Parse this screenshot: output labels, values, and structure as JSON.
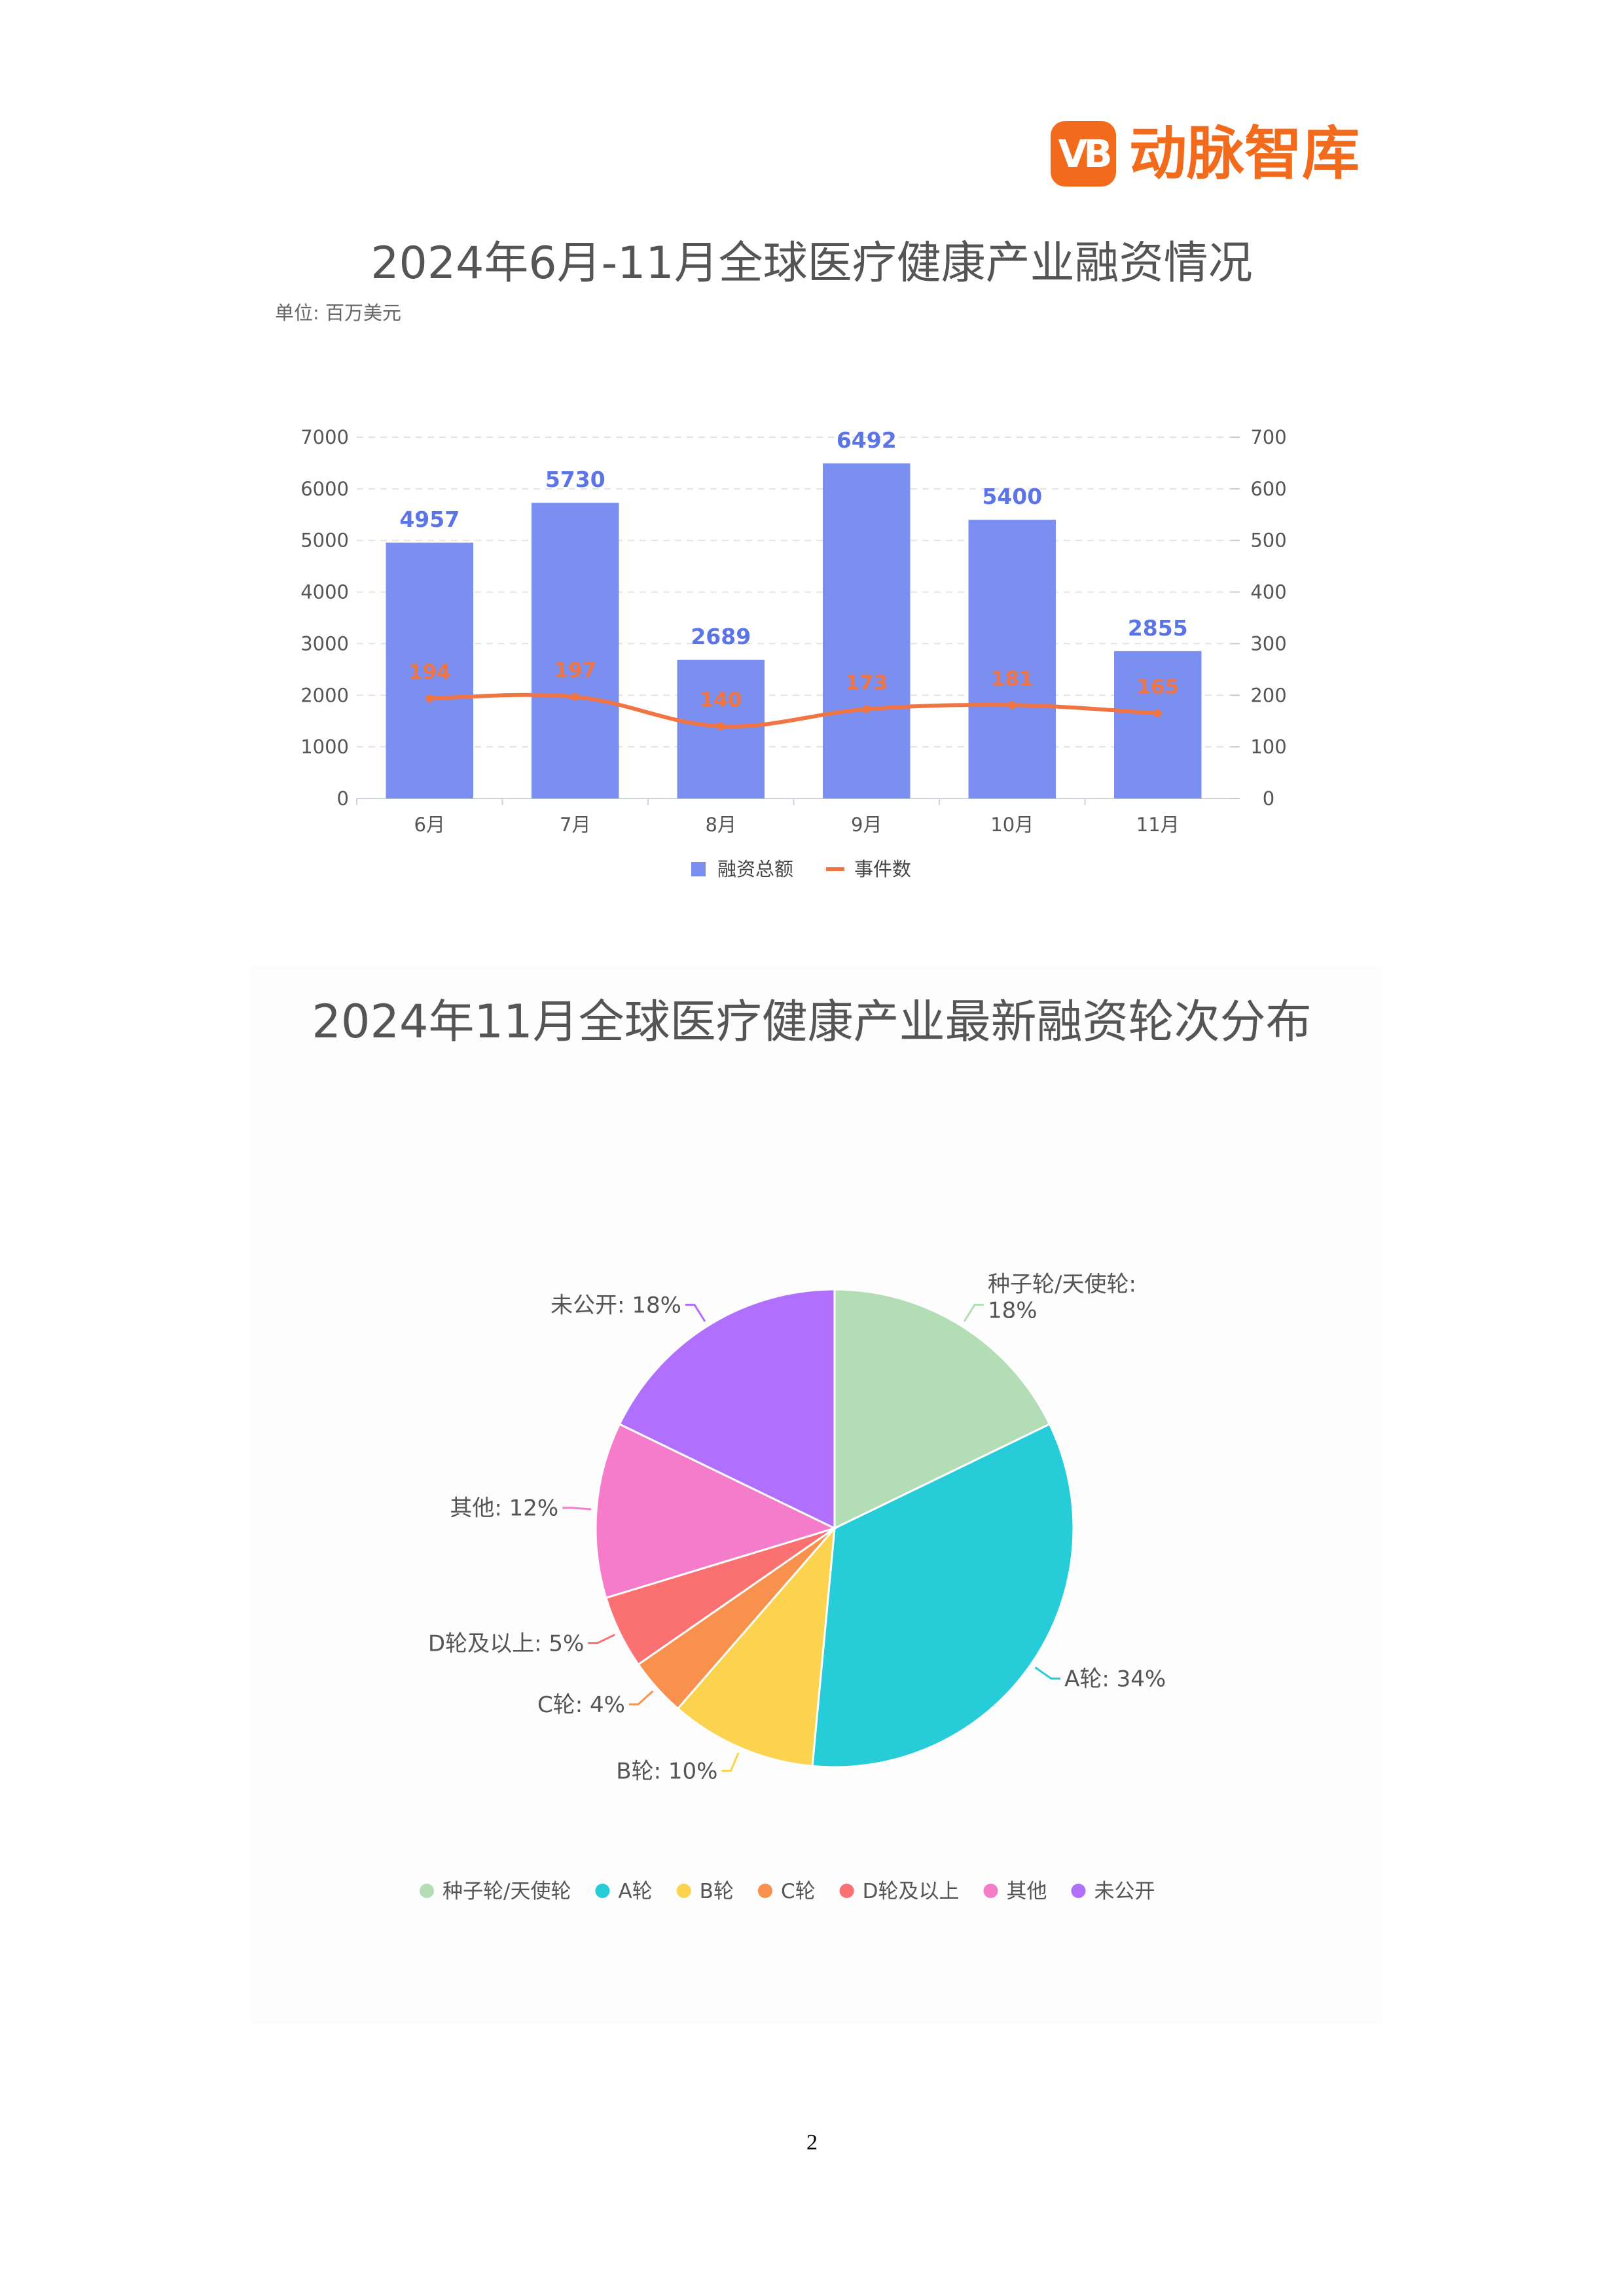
{
  "logo": {
    "mark": "VB",
    "text": "动脉智库"
  },
  "page_number": "2",
  "colors": {
    "bar": "#7b8ff0",
    "line": "#f07543",
    "bar_label": "#5b74e8"
  },
  "chart_data": [
    {
      "type": "bar",
      "title": "2024年6月-11月全球医疗健康产业融资情况",
      "subtitle": "单位: 百万美元",
      "categories": [
        "6月",
        "7月",
        "8月",
        "9月",
        "10月",
        "11月"
      ],
      "series": [
        {
          "name": "融资总额",
          "kind": "bar",
          "axis": "left",
          "values": [
            4957,
            5730,
            2689,
            6492,
            5400,
            2855
          ]
        },
        {
          "name": "事件数",
          "kind": "line",
          "axis": "right",
          "values": [
            194,
            197,
            140,
            173,
            181,
            165
          ]
        }
      ],
      "ylim_left": [
        0,
        7000
      ],
      "ylim_right": [
        0,
        700
      ],
      "yticks_left": [
        "0",
        "1000",
        "2000",
        "3000",
        "4000",
        "5000",
        "6000",
        "7000"
      ],
      "yticks_right": [
        "0",
        "100",
        "200",
        "300",
        "400",
        "500",
        "600",
        "700"
      ],
      "grid": "horizontal dashed",
      "legend": "bottom-center"
    },
    {
      "type": "pie",
      "title": "2024年11月全球医疗健康产业最新融资轮次分布",
      "slices": [
        {
          "name": "种子轮/天使轮",
          "value": 18,
          "label_line1": "种子轮/天使轮:",
          "label_line2": "18%",
          "color": "#b3ddb5"
        },
        {
          "name": "A轮",
          "value": 34,
          "label": "A轮: 34%",
          "color": "#27ccd9"
        },
        {
          "name": "B轮",
          "value": 10,
          "label": "B轮: 10%",
          "color": "#fcd34f"
        },
        {
          "name": "C轮",
          "value": 4,
          "label": "C轮: 4%",
          "color": "#f7914d"
        },
        {
          "name": "D轮及以上",
          "value": 5,
          "label": "D轮及以上: 5%",
          "color": "#fb7071"
        },
        {
          "name": "其他",
          "value": 12,
          "label": "其他: 12%",
          "color": "#f57ccb"
        },
        {
          "name": "未公开",
          "value": 18,
          "label": "未公开: 18%",
          "color": "#b06ffc"
        }
      ],
      "legend": "bottom-center"
    }
  ]
}
